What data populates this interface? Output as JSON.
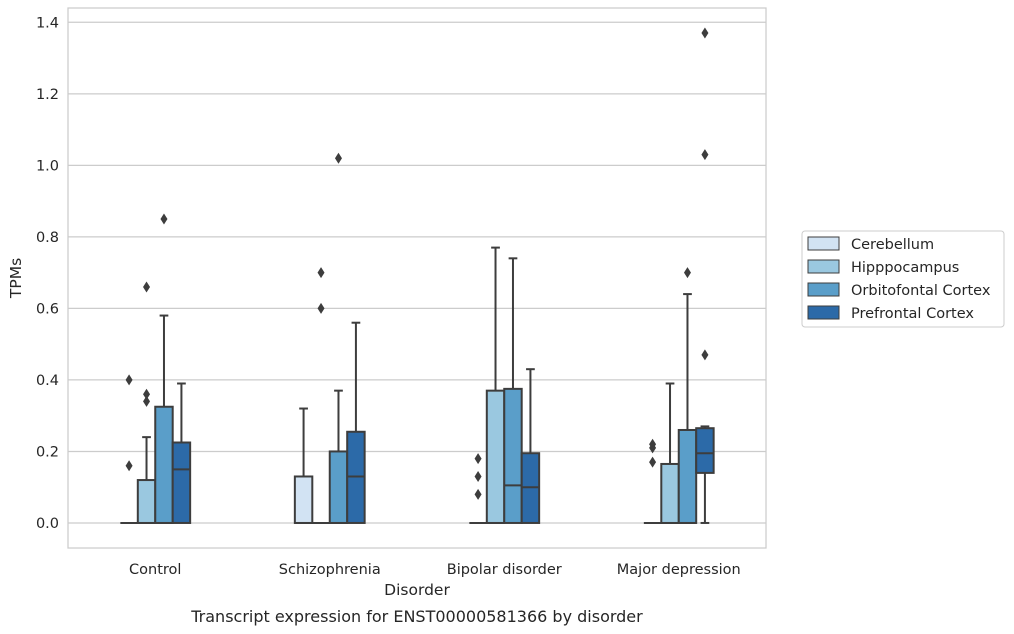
{
  "caption": "Transcript expression for ENST00000581366 by disorder",
  "chart_data": {
    "type": "box",
    "xlabel": "Disorder",
    "ylabel": "TPMs",
    "ylim": [
      -0.07,
      1.44
    ],
    "yticks": [
      0.0,
      0.2,
      0.4,
      0.6,
      0.8,
      1.0,
      1.2,
      1.4
    ],
    "ytick_labels": [
      "0.0",
      "0.2",
      "0.4",
      "0.6",
      "0.8",
      "1.0",
      "1.2",
      "1.4"
    ],
    "grid": "horizontal",
    "legend_position": "right",
    "categories": [
      "Control",
      "Schizophrenia",
      "Bipolar disorder",
      "Major depression"
    ],
    "series": [
      {
        "name": "Cerebellum",
        "color": "#d2e3f3",
        "boxes": [
          {
            "q1": 0.0,
            "median": 0.0,
            "q3": 0.0,
            "whisker_low": 0.0,
            "whisker_high": 0.0,
            "outliers": [
              0.16,
              0.4
            ]
          },
          {
            "q1": 0.0,
            "median": 0.0,
            "q3": 0.13,
            "whisker_low": 0.0,
            "whisker_high": 0.32,
            "outliers": []
          },
          {
            "q1": 0.0,
            "median": 0.0,
            "q3": 0.0,
            "whisker_low": 0.0,
            "whisker_high": 0.0,
            "outliers": [
              0.08,
              0.13,
              0.18
            ]
          },
          {
            "q1": 0.0,
            "median": 0.0,
            "q3": 0.0,
            "whisker_low": 0.0,
            "whisker_high": 0.0,
            "outliers": [
              0.17,
              0.21,
              0.22
            ]
          }
        ]
      },
      {
        "name": "Hipppocampus",
        "color": "#9ac8e0",
        "boxes": [
          {
            "q1": 0.0,
            "median": 0.0,
            "q3": 0.12,
            "whisker_low": 0.0,
            "whisker_high": 0.24,
            "outliers": [
              0.34,
              0.36,
              0.66
            ]
          },
          {
            "q1": 0.0,
            "median": 0.0,
            "q3": 0.0,
            "whisker_low": 0.0,
            "whisker_high": 0.0,
            "outliers": [
              0.6,
              0.7
            ]
          },
          {
            "q1": 0.0,
            "median": 0.0,
            "q3": 0.37,
            "whisker_low": 0.0,
            "whisker_high": 0.77,
            "outliers": []
          },
          {
            "q1": 0.0,
            "median": 0.0,
            "q3": 0.165,
            "whisker_low": 0.0,
            "whisker_high": 0.39,
            "outliers": []
          }
        ]
      },
      {
        "name": "Orbitofontal Cortex",
        "color": "#5a9ec9",
        "boxes": [
          {
            "q1": 0.0,
            "median": 0.0,
            "q3": 0.325,
            "whisker_low": 0.0,
            "whisker_high": 0.58,
            "outliers": [
              0.85
            ]
          },
          {
            "q1": 0.0,
            "median": 0.0,
            "q3": 0.2,
            "whisker_low": 0.0,
            "whisker_high": 0.37,
            "outliers": [
              1.02
            ]
          },
          {
            "q1": 0.0,
            "median": 0.105,
            "q3": 0.375,
            "whisker_low": 0.0,
            "whisker_high": 0.74,
            "outliers": []
          },
          {
            "q1": 0.0,
            "median": 0.0,
            "q3": 0.26,
            "whisker_low": 0.0,
            "whisker_high": 0.64,
            "outliers": [
              0.7
            ]
          }
        ]
      },
      {
        "name": "Prefrontal Cortex",
        "color": "#2c6aa8",
        "boxes": [
          {
            "q1": 0.0,
            "median": 0.15,
            "q3": 0.225,
            "whisker_low": 0.0,
            "whisker_high": 0.39,
            "outliers": []
          },
          {
            "q1": 0.0,
            "median": 0.13,
            "q3": 0.255,
            "whisker_low": 0.0,
            "whisker_high": 0.56,
            "outliers": []
          },
          {
            "q1": 0.0,
            "median": 0.1,
            "q3": 0.195,
            "whisker_low": 0.0,
            "whisker_high": 0.43,
            "outliers": []
          },
          {
            "q1": 0.14,
            "median": 0.195,
            "q3": 0.265,
            "whisker_low": 0.0,
            "whisker_high": 0.27,
            "outliers": [
              0.47,
              1.03,
              1.37
            ]
          }
        ]
      }
    ]
  }
}
